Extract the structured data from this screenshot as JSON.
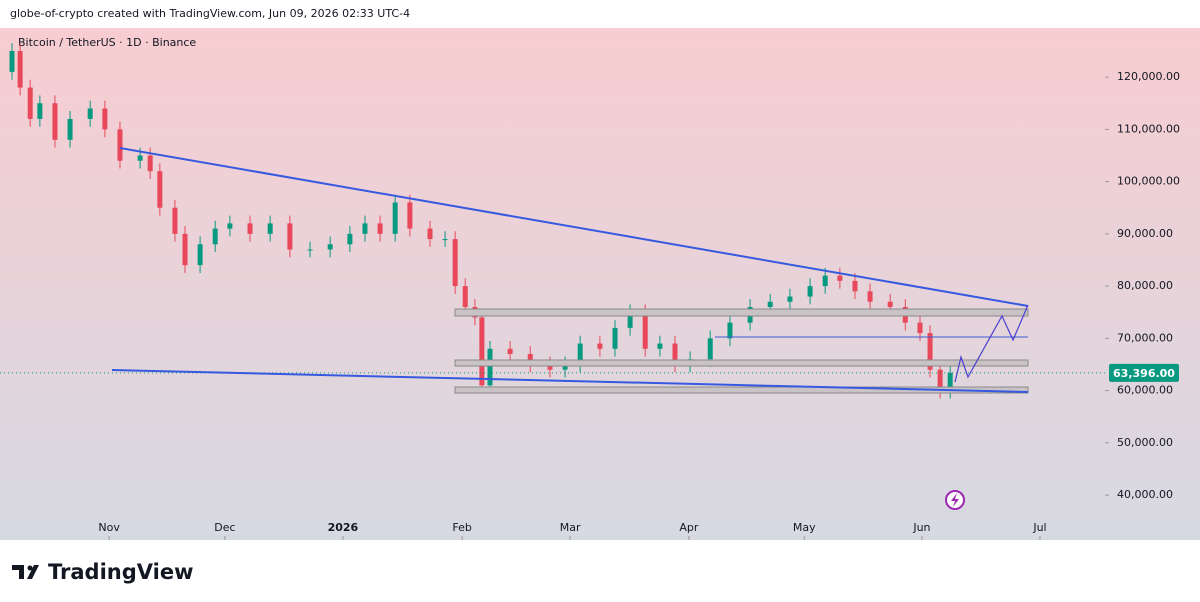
{
  "header": "globe-of-crypto created with TradingView.com, Jun 09, 2026 02:33 UTC-4",
  "brand": "TradingView",
  "chart_data": {
    "type": "candlestick",
    "title": "Bitcoin / TetherUS · 1D · Binance",
    "up_color": "#089981",
    "down_color": "#e8485a",
    "x": [
      3.1,
      5.2,
      7.8,
      10.3,
      14.2,
      18.1,
      23.3,
      27.1,
      31,
      36.2,
      38.8,
      41.3,
      45.2,
      47.8,
      51.7,
      55.6,
      59.4,
      64.6,
      69.8,
      74.9,
      80.1,
      85.3,
      90.4,
      94.3,
      98.2,
      102.1,
      105.9,
      111.1,
      115,
      117.6,
      120.2,
      122.7,
      124.5,
      126.6,
      131.8,
      137,
      142.1,
      146,
      149.9,
      155,
      158.9,
      162.8,
      166.7,
      170.5,
      174.4,
      178.3,
      183.5,
      188.6,
      193.8,
      199,
      204.1,
      209.3,
      213.2,
      217,
      220.9,
      224.8,
      230,
      233.9,
      237.7,
      240.3,
      242.9,
      245.5
    ],
    "open": [
      121000,
      125000,
      118000,
      112000,
      115000,
      108000,
      112000,
      114000,
      110000,
      104000,
      105000,
      102000,
      95000,
      90000,
      84000,
      88000,
      91000,
      92000,
      90000,
      92000,
      87000,
      87000,
      88000,
      90000,
      92000,
      90000,
      96000,
      91000,
      89000,
      89000,
      80000,
      76000,
      74000,
      61000,
      68000,
      67000,
      65000,
      64000,
      65000,
      69000,
      68000,
      72000,
      75000,
      68000,
      69000,
      65000,
      66000,
      70000,
      73000,
      76000,
      77000,
      78000,
      80000,
      82000,
      81000,
      79000,
      77000,
      76000,
      73000,
      71000,
      64000,
      60000
    ],
    "high": [
      126500,
      126500,
      119500,
      116500,
      116500,
      113500,
      115500,
      115500,
      111500,
      106500,
      106500,
      103500,
      96500,
      91500,
      89500,
      92500,
      93500,
      93500,
      93500,
      93500,
      88500,
      89500,
      91500,
      93500,
      93500,
      97500,
      97500,
      92500,
      90500,
      90500,
      81500,
      77500,
      75500,
      69500,
      69500,
      68500,
      66500,
      66500,
      70500,
      70500,
      73500,
      76500,
      76500,
      70500,
      70500,
      67500,
      71500,
      74500,
      77500,
      78500,
      79500,
      81500,
      83500,
      83500,
      82500,
      80500,
      78500,
      77500,
      74500,
      72500,
      65500,
      64900
    ],
    "low": [
      119500,
      116500,
      110500,
      110500,
      106500,
      106500,
      110500,
      108500,
      102500,
      102500,
      100500,
      93500,
      88500,
      82500,
      82500,
      86500,
      89500,
      88500,
      88500,
      85500,
      85500,
      85500,
      86500,
      88500,
      88500,
      88500,
      89500,
      87500,
      87500,
      78500,
      74500,
      72500,
      59500,
      59500,
      65500,
      63500,
      62500,
      62500,
      63500,
      66500,
      66500,
      70500,
      66500,
      66500,
      63500,
      63500,
      64500,
      68500,
      71500,
      74500,
      75500,
      76500,
      78500,
      79500,
      77500,
      75500,
      74500,
      71500,
      69500,
      62500,
      58500,
      58500
    ],
    "close": [
      125000,
      118000,
      112000,
      115000,
      108000,
      112000,
      114000,
      110000,
      104000,
      105000,
      102000,
      95000,
      90000,
      84000,
      88000,
      91000,
      92000,
      90000,
      92000,
      87000,
      87000,
      88000,
      90000,
      92000,
      90000,
      96000,
      91000,
      89000,
      89000,
      80000,
      76000,
      74000,
      61000,
      68000,
      67000,
      65000,
      64000,
      65000,
      69000,
      68000,
      72000,
      75000,
      68000,
      69000,
      65000,
      66000,
      70000,
      73000,
      76000,
      77000,
      78000,
      80000,
      82000,
      81000,
      79000,
      77000,
      76000,
      73000,
      71000,
      64000,
      60000,
      63400
    ],
    "last_price": {
      "value": 63396,
      "label": "63,396.00"
    },
    "xlim": [
      0,
      285.5
    ],
    "xticks": [
      {
        "value": 28.2,
        "label": "Nov"
      },
      {
        "value": 58.1,
        "label": "Dec"
      },
      {
        "value": 88.6,
        "label": "2026"
      },
      {
        "value": 119.4,
        "label": "Feb"
      },
      {
        "value": 147.3,
        "label": "Mar"
      },
      {
        "value": 178,
        "label": "Apr"
      },
      {
        "value": 207.8,
        "label": "May"
      },
      {
        "value": 238.2,
        "label": "Jun"
      },
      {
        "value": 268.7,
        "label": "Jul"
      }
    ],
    "ylim": [
      31400,
      129400
    ],
    "yticks": [
      {
        "value": 40000,
        "label": "40,000.00"
      },
      {
        "value": 50000,
        "label": "50,000.00"
      },
      {
        "value": 60000,
        "label": "60,000.00"
      },
      {
        "value": 70000,
        "label": "70,000.00"
      },
      {
        "value": 80000,
        "label": "80,000.00"
      },
      {
        "value": 90000,
        "label": "90,000.00"
      },
      {
        "value": 100000,
        "label": "100,000.00"
      },
      {
        "value": 110000,
        "label": "110,000.00"
      },
      {
        "value": 120000,
        "label": "120,000.00"
      }
    ]
  }
}
